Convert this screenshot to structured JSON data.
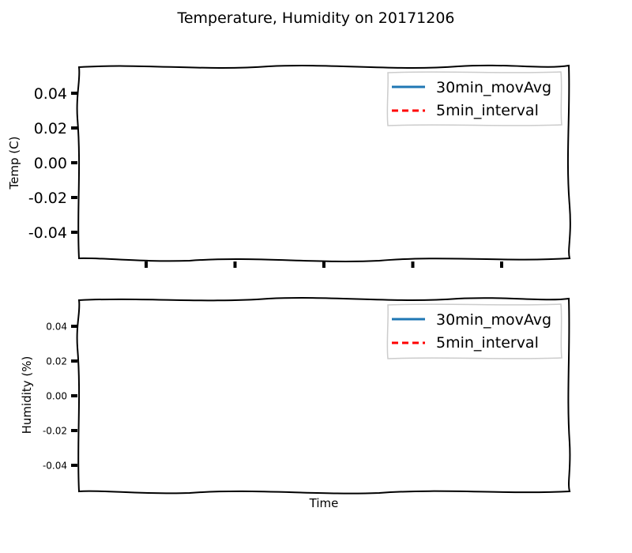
{
  "chart_data": [
    {
      "type": "line",
      "panel": "top",
      "title": "Temperature, Humidity on 20171206",
      "ylabel": "Temp (C)",
      "xlabel": "",
      "ylim": [
        -0.055,
        0.055
      ],
      "yticks": [
        0.04,
        0.02,
        0.0,
        -0.02,
        -0.04
      ],
      "ytick_labels": [
        "0.04",
        "0.02",
        "0.00",
        "-0.02",
        "-0.04"
      ],
      "x_tick_count": 5,
      "legend_position": "top-right",
      "series": [
        {
          "name": "30min_movAvg",
          "color": "#1f77b4",
          "style": "solid",
          "x": [],
          "y": []
        },
        {
          "name": "5min_interval",
          "color": "#ff0000",
          "style": "dashed",
          "x": [],
          "y": []
        }
      ]
    },
    {
      "type": "line",
      "panel": "bottom",
      "ylabel": "Humidity (%)",
      "xlabel": "Time",
      "ylim": [
        -0.055,
        0.055
      ],
      "yticks": [
        0.04,
        0.02,
        0.0,
        -0.02,
        -0.04
      ],
      "ytick_labels": [
        "0.04",
        "0.02",
        "0.00",
        "-0.02",
        "-0.04"
      ],
      "legend_position": "top-right",
      "series": [
        {
          "name": "30min_movAvg",
          "color": "#1f77b4",
          "style": "solid",
          "x": [],
          "y": []
        },
        {
          "name": "5min_interval",
          "color": "#ff0000",
          "style": "dashed",
          "x": [],
          "y": []
        }
      ]
    }
  ]
}
